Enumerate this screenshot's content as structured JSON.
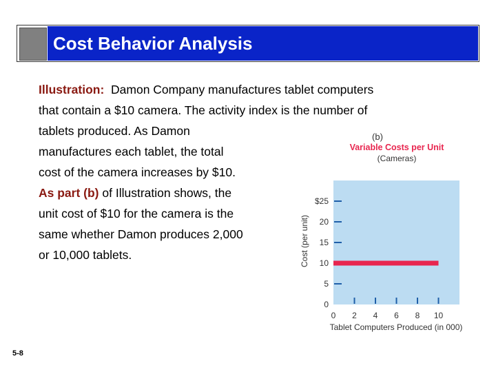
{
  "slide": {
    "title": "Cost Behavior Analysis",
    "number": "5-8",
    "lines": [
      {
        "lead": "Illustration:",
        "text": "Damon Company manufactures tablet computers"
      },
      {
        "text": "that contain a $10 camera. The activity index is the number of"
      },
      {
        "text": "tablets produced. As Damon"
      },
      {
        "text": "manufactures each tablet, the total"
      },
      {
        "text": "cost of the camera increases by $10."
      },
      {
        "lead": "As part (b)",
        "text": "of Illustration shows, the"
      },
      {
        "text": "unit cost of $10 for the camera is the"
      },
      {
        "text": "same whether Damon produces 2,000"
      },
      {
        "text": "or 10,000 tablets."
      }
    ]
  },
  "colors": {
    "title_blue": "#0a24c8",
    "plot_bg": "#bcdcf2",
    "series": "#e8264f",
    "heading": "#e8264f",
    "axis_ticks": "#1f5fa8"
  },
  "chart_data": {
    "type": "line",
    "panel_label": "(b)",
    "title": "Variable Costs per Unit",
    "subtitle": "(Cameras)",
    "xlabel": "Tablet Computers Produced (in 000)",
    "ylabel": "Cost (per unit)",
    "x_ticks": [
      "0",
      "2",
      "4",
      "6",
      "8",
      "10"
    ],
    "y_ticks": [
      "0",
      "5",
      "10",
      "15",
      "20",
      "$25"
    ],
    "xlim": [
      0,
      12
    ],
    "ylim": [
      0,
      30
    ],
    "series": [
      {
        "x": [
          0,
          10
        ],
        "y": [
          10,
          10
        ]
      }
    ]
  }
}
